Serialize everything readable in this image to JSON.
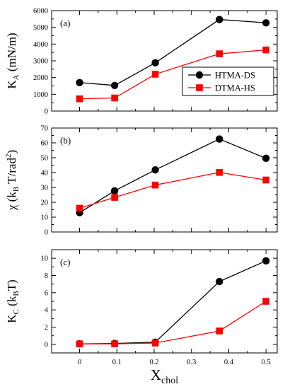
{
  "chart_data": [
    {
      "type": "line",
      "panel_label": "(a)",
      "ylabel": {
        "main": "K",
        "sub": "A",
        "rest": " (mN/m)"
      },
      "x": [
        0,
        0.094,
        0.203,
        0.375,
        0.5
      ],
      "xlim": [
        -0.075,
        0.53
      ],
      "ylim": [
        0,
        6000
      ],
      "yticks": [
        0,
        1000,
        2000,
        3000,
        4000,
        5000,
        6000
      ],
      "xticks": [
        0,
        0.1,
        0.2,
        0.3,
        0.4,
        0.5
      ],
      "series": [
        {
          "name": "HTMA-DS",
          "color": "#000000",
          "marker": "circle",
          "values": [
            1700,
            1530,
            2880,
            5470,
            5270
          ]
        },
        {
          "name": "DTMA-HS",
          "color": "#ff0000",
          "marker": "square",
          "values": [
            730,
            780,
            2200,
            3420,
            3650
          ]
        }
      ],
      "legend": "right"
    },
    {
      "type": "line",
      "panel_label": "(b)",
      "ylabel": {
        "main": "χ",
        "rest": " (k",
        "sub": "B",
        "rest2": " T/rad",
        "sup": "2",
        "rest3": ")"
      },
      "x": [
        0,
        0.094,
        0.203,
        0.375,
        0.5
      ],
      "xlim": [
        -0.075,
        0.53
      ],
      "ylim": [
        0,
        70
      ],
      "yticks": [
        0,
        10,
        20,
        30,
        40,
        50,
        60,
        70
      ],
      "xticks": [
        0,
        0.1,
        0.2,
        0.3,
        0.4,
        0.5
      ],
      "series": [
        {
          "name": "HTMA-DS",
          "color": "#000000",
          "marker": "circle",
          "values": [
            13,
            27.7,
            41.8,
            62.6,
            49.6
          ]
        },
        {
          "name": "DTMA-HS",
          "color": "#ff0000",
          "marker": "square",
          "values": [
            16,
            23.3,
            31.6,
            40.1,
            35
          ]
        }
      ]
    },
    {
      "type": "line",
      "panel_label": "(c)",
      "ylabel": {
        "main": "K",
        "sub": "C",
        "rest": " (k",
        "sub2": "B",
        "rest2": "T)"
      },
      "x": [
        0,
        0.094,
        0.203,
        0.375,
        0.5
      ],
      "xlim": [
        -0.075,
        0.53
      ],
      "ylim": [
        -1,
        11
      ],
      "yticks": [
        0,
        2,
        4,
        6,
        8,
        10
      ],
      "xticks": [
        0,
        0.1,
        0.2,
        0.3,
        0.4,
        0.5
      ],
      "xlabel": {
        "main": "X",
        "sub": "chol"
      },
      "series": [
        {
          "name": "HTMA-DS",
          "color": "#000000",
          "marker": "circle",
          "values": [
            0.05,
            0.1,
            0.25,
            7.3,
            9.7
          ]
        },
        {
          "name": "DTMA-HS",
          "color": "#ff0000",
          "marker": "square",
          "values": [
            0.05,
            0.05,
            0.15,
            1.55,
            5.0
          ]
        }
      ]
    }
  ]
}
